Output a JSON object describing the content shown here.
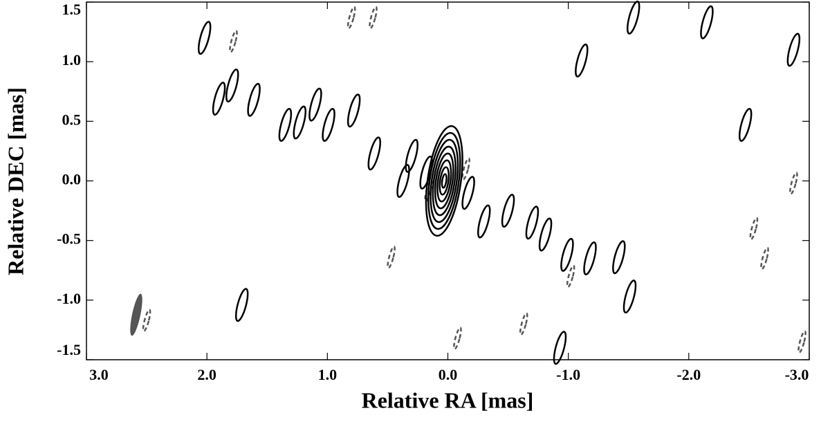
{
  "chart_data": {
    "type": "contour",
    "xlabel": "Relative RA [mas]",
    "ylabel": "Relative DEC [mas]",
    "xlim": [
      3.0,
      -3.0
    ],
    "ylim": [
      -1.5,
      1.5
    ],
    "xticks": [
      {
        "value": 3,
        "label": "3.0"
      },
      {
        "value": 2,
        "label": "2.0"
      },
      {
        "value": 1,
        "label": "1.0"
      },
      {
        "value": 0,
        "label": "0.0"
      },
      {
        "value": -1,
        "label": "-1.0"
      },
      {
        "value": -2,
        "label": "-2.0"
      },
      {
        "value": -3,
        "label": "-3.0"
      }
    ],
    "yticks": [
      1.5,
      {
        "value": 1,
        "label": "1.0"
      },
      0.5,
      {
        "value": 0,
        "label": "0.0"
      },
      -0.5,
      {
        "value": -1,
        "label": "-1.0"
      },
      -1.5
    ],
    "core": {
      "x": 0.03,
      "y": 0.0,
      "color": "#000000"
    },
    "positive": {
      "color": "#000000",
      "x": [
        2.02,
        1.9,
        1.79,
        1.61,
        1.35,
        1.23,
        1.1,
        0.99,
        0.78,
        0.61,
        0.3,
        0.37,
        0.18,
        -0.17,
        -0.3,
        -0.5,
        -0.7,
        -0.81,
        -0.99,
        -1.18,
        -1.42,
        -1.51,
        -1.11,
        -1.54,
        -2.15,
        -2.87,
        -2.47,
        1.71,
        -0.93
      ],
      "y": [
        1.2,
        0.69,
        0.8,
        0.68,
        0.47,
        0.49,
        0.64,
        0.47,
        0.59,
        0.23,
        0.21,
        0.0,
        0.07,
        -0.1,
        -0.34,
        -0.25,
        -0.35,
        -0.45,
        -0.62,
        -0.65,
        -0.64,
        -0.97,
        1.01,
        1.37,
        1.33,
        1.1,
        0.47,
        -1.04,
        -1.4
      ]
    },
    "negative": {
      "color": "#555555",
      "x": [
        1.78,
        0.8,
        0.62,
        0.47,
        0.16,
        -0.15,
        -0.63,
        -0.08,
        -1.02,
        -2.54,
        -2.63,
        -2.87,
        -2.94,
        2.5
      ],
      "y": [
        1.17,
        1.37,
        1.37,
        -0.64,
        -0.08,
        0.1,
        -1.2,
        -1.32,
        -0.8,
        -0.4,
        -0.65,
        -0.02,
        -1.35,
        -1.17
      ]
    }
  }
}
